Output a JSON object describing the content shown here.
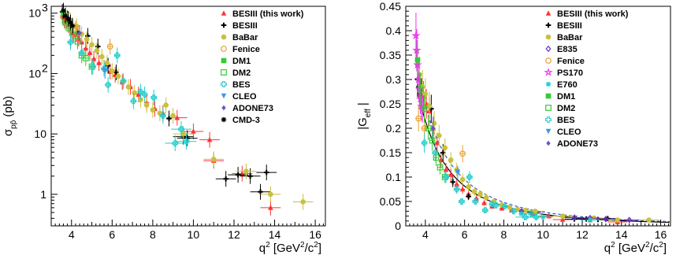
{
  "chart_data": [
    {
      "type": "scatter",
      "panel": "left",
      "ylabel_main": "σ",
      "ylabel_sub": "pp̄",
      "ylabel_unit": "(pb)",
      "xlabel_main": "q",
      "xlabel_unit": "[GeV /c ]",
      "yscale": "log",
      "xlim": [
        3.0,
        16.5
      ],
      "ylim": [
        0.3,
        1300
      ],
      "xticks": [
        "4",
        "6",
        "8",
        "10",
        "12",
        "14",
        "16"
      ],
      "xtick_values": [
        4,
        6,
        8,
        10,
        12,
        14,
        16
      ],
      "yticks": [
        "1",
        "10",
        "10",
        "10"
      ],
      "ytick_exp": [
        "",
        "",
        "2",
        "3"
      ],
      "ytick_values": [
        1,
        10,
        100,
        1000
      ],
      "legend": [
        {
          "name": "BESIII (this work)",
          "marker": "triangle-up",
          "color": "#ff3333"
        },
        {
          "name": "BESIII",
          "marker": "plus",
          "color": "#000000"
        },
        {
          "name": "BaBar",
          "marker": "circle",
          "color": "#c9c13a"
        },
        {
          "name": "Fenice",
          "marker": "open-circle",
          "color": "#e8a030"
        },
        {
          "name": "DM1",
          "marker": "square",
          "color": "#33cc33"
        },
        {
          "name": "DM2",
          "marker": "open-square",
          "color": "#33cc33"
        },
        {
          "name": "BES",
          "marker": "open-cross",
          "color": "#22cccc"
        },
        {
          "name": "CLEO",
          "marker": "triangle-down",
          "color": "#3399ee"
        },
        {
          "name": "ADONE73",
          "marker": "diamond",
          "color": "#6655cc"
        },
        {
          "name": "CMD-3",
          "marker": "star",
          "color": "#000000"
        }
      ],
      "series": [
        {
          "name": "BESIII (this work)",
          "points": [
            [
              3.55,
              900
            ],
            [
              3.65,
              760
            ],
            [
              3.75,
              760
            ],
            [
              3.85,
              640
            ],
            [
              3.95,
              600
            ],
            [
              4.05,
              470
            ],
            [
              4.2,
              440
            ],
            [
              4.35,
              380
            ],
            [
              4.5,
              330
            ],
            [
              4.7,
              260
            ],
            [
              4.9,
              220
            ],
            [
              5.1,
              175
            ],
            [
              5.35,
              150
            ],
            [
              5.6,
              125
            ],
            [
              5.9,
              108
            ],
            [
              6.15,
              95
            ],
            [
              6.5,
              72
            ],
            [
              6.9,
              60
            ],
            [
              7.3,
              45
            ],
            [
              7.7,
              33
            ],
            [
              8.1,
              26
            ],
            [
              8.5,
              22
            ],
            [
              9.2,
              18.5
            ],
            [
              10.0,
              11
            ],
            [
              10.8,
              8
            ],
            [
              11.0,
              3.6
            ],
            [
              12.4,
              2.2
            ],
            [
              13.8,
              0.6
            ]
          ]
        },
        {
          "name": "BESIII",
          "points": [
            [
              3.55,
              1050
            ],
            [
              3.8,
              820
            ],
            [
              4.3,
              490
            ],
            [
              4.8,
              420
            ],
            [
              5.3,
              280
            ],
            [
              5.8,
              135
            ],
            [
              6.2,
              105
            ],
            [
              8.8,
              18
            ],
            [
              9.5,
              9
            ],
            [
              9.7,
              8.5
            ],
            [
              11.6,
              1.8
            ],
            [
              12.2,
              2.1
            ],
            [
              12.8,
              2.0
            ],
            [
              13.3,
              1.1
            ],
            [
              13.6,
              2.3
            ]
          ]
        },
        {
          "name": "BaBar",
          "points": [
            [
              3.7,
              950
            ],
            [
              3.95,
              760
            ],
            [
              4.25,
              610
            ],
            [
              4.5,
              450
            ],
            [
              4.75,
              370
            ],
            [
              5.0,
              300
            ],
            [
              5.25,
              240
            ],
            [
              5.5,
              190
            ],
            [
              5.75,
              150
            ],
            [
              6.0,
              110
            ],
            [
              6.3,
              90
            ],
            [
              6.55,
              75
            ],
            [
              6.8,
              60
            ],
            [
              7.1,
              48
            ],
            [
              7.4,
              37
            ],
            [
              7.7,
              30
            ],
            [
              8.0,
              25
            ],
            [
              8.35,
              22
            ],
            [
              8.65,
              30
            ],
            [
              9.0,
              20
            ],
            [
              9.5,
              10
            ],
            [
              11.0,
              3.8
            ],
            [
              12.6,
              2.4
            ],
            [
              13.8,
              1.0
            ],
            [
              15.4,
              0.75
            ]
          ]
        },
        {
          "name": "Fenice",
          "points": [
            [
              3.6,
              850
            ],
            [
              3.9,
              650
            ],
            [
              4.2,
              550
            ],
            [
              5.9,
              280
            ]
          ]
        },
        {
          "name": "DM1",
          "points": [
            [
              3.6,
              1000
            ]
          ]
        },
        {
          "name": "DM2",
          "points": [
            [
              3.7,
              700
            ],
            [
              3.9,
              560
            ],
            [
              4.1,
              430
            ],
            [
              4.3,
              340
            ],
            [
              4.5,
              200
            ],
            [
              4.7,
              180
            ],
            [
              5.0,
              130
            ]
          ]
        },
        {
          "name": "BES",
          "points": [
            [
              3.95,
              330
            ],
            [
              4.5,
              220
            ],
            [
              5.05,
              130
            ],
            [
              5.6,
              120
            ],
            [
              5.8,
              65
            ],
            [
              6.25,
              200
            ],
            [
              6.55,
              75
            ],
            [
              7.05,
              35
            ],
            [
              7.4,
              50
            ],
            [
              7.6,
              45
            ],
            [
              8.05,
              40
            ],
            [
              8.5,
              20
            ],
            [
              9.1,
              7
            ],
            [
              9.4,
              12
            ],
            [
              9.65,
              7.5
            ]
          ]
        },
        {
          "name": "CLEO",
          "points": [
            [
              5.65,
              110
            ]
          ]
        },
        {
          "name": "ADONE73",
          "points": [
            [
              4.4,
              470
            ]
          ]
        },
        {
          "name": "CMD-3",
          "points": [
            [
              3.6,
              1100
            ],
            [
              3.7,
              900
            ],
            [
              3.85,
              800
            ],
            [
              3.95,
              700
            ],
            [
              4.05,
              620
            ]
          ]
        }
      ]
    },
    {
      "type": "scatter",
      "panel": "right",
      "ylabel_main": "|G",
      "ylabel_sub": "eff",
      "ylabel_close": "|",
      "xlabel_main": "q",
      "xlabel_unit": "[GeV /c ]",
      "yscale": "linear",
      "xlim": [
        3.0,
        16.5
      ],
      "ylim": [
        0,
        0.45
      ],
      "xticks": [
        "4",
        "6",
        "8",
        "10",
        "12",
        "14",
        "16"
      ],
      "xtick_values": [
        4,
        6,
        8,
        10,
        12,
        14,
        16
      ],
      "yticks": [
        "0",
        "0.05",
        "0.1",
        "0.15",
        "0.2",
        "0.25",
        "0.3",
        "0.35",
        "0.4",
        "0.45"
      ],
      "ytick_values": [
        0,
        0.05,
        0.1,
        0.15,
        0.2,
        0.25,
        0.3,
        0.35,
        0.4,
        0.45
      ],
      "legend": [
        {
          "name": "BESIII (this work)",
          "marker": "triangle-up",
          "color": "#ff3333"
        },
        {
          "name": "BESIII",
          "marker": "plus",
          "color": "#000000"
        },
        {
          "name": "BaBar",
          "marker": "circle",
          "color": "#c9c13a"
        },
        {
          "name": "E835",
          "marker": "open-diamond",
          "color": "#6633cc"
        },
        {
          "name": "Fenice",
          "marker": "open-circle",
          "color": "#e8a030"
        },
        {
          "name": "PS170",
          "marker": "open-star",
          "color": "#ee33ee"
        },
        {
          "name": "E760",
          "marker": "asterisk",
          "color": "#22cccc"
        },
        {
          "name": "DM1",
          "marker": "square",
          "color": "#33cc33"
        },
        {
          "name": "DM2",
          "marker": "open-square",
          "color": "#33cc33"
        },
        {
          "name": "BES",
          "marker": "open-cross",
          "color": "#22cccc"
        },
        {
          "name": "CLEO",
          "marker": "triangle-down",
          "color": "#3399ee"
        },
        {
          "name": "ADONE73",
          "marker": "diamond",
          "color": "#6655cc"
        }
      ],
      "series": [
        {
          "name": "BESIII (this work)",
          "points": [
            [
              3.75,
              0.27
            ],
            [
              3.9,
              0.265
            ],
            [
              4.05,
              0.25
            ],
            [
              4.2,
              0.235
            ],
            [
              4.4,
              0.2
            ],
            [
              4.6,
              0.17
            ],
            [
              4.8,
              0.135
            ],
            [
              5.05,
              0.115
            ],
            [
              5.3,
              0.105
            ],
            [
              5.6,
              0.085
            ],
            [
              5.9,
              0.075
            ],
            [
              6.2,
              0.065
            ],
            [
              6.6,
              0.056
            ],
            [
              7.0,
              0.047
            ],
            [
              7.4,
              0.04
            ],
            [
              7.9,
              0.036
            ],
            [
              8.4,
              0.032
            ],
            [
              8.9,
              0.028
            ],
            [
              9.5,
              0.025
            ],
            [
              10.3,
              0.02
            ],
            [
              11.0,
              0.013
            ],
            [
              12.4,
              0.012
            ],
            [
              13.8,
              0.008
            ]
          ]
        },
        {
          "name": "BESIII",
          "points": [
            [
              3.6,
              0.3
            ],
            [
              3.8,
              0.27
            ],
            [
              4.3,
              0.24
            ],
            [
              4.9,
              0.15
            ],
            [
              5.4,
              0.09
            ],
            [
              6.2,
              0.06
            ],
            [
              9.4,
              0.028
            ],
            [
              11.6,
              0.014
            ],
            [
              12.2,
              0.014
            ],
            [
              12.8,
              0.013
            ],
            [
              13.3,
              0.015
            ]
          ]
        },
        {
          "name": "BaBar",
          "points": [
            [
              3.6,
              0.33
            ],
            [
              3.7,
              0.31
            ],
            [
              3.85,
              0.285
            ],
            [
              4.0,
              0.27
            ],
            [
              4.2,
              0.245
            ],
            [
              4.45,
              0.21
            ],
            [
              4.7,
              0.185
            ],
            [
              5.0,
              0.16
            ],
            [
              5.3,
              0.135
            ],
            [
              5.6,
              0.115
            ],
            [
              5.9,
              0.095
            ],
            [
              6.2,
              0.08
            ],
            [
              6.5,
              0.07
            ],
            [
              6.8,
              0.065
            ],
            [
              7.1,
              0.058
            ],
            [
              7.5,
              0.05
            ],
            [
              7.9,
              0.043
            ],
            [
              8.3,
              0.038
            ],
            [
              8.7,
              0.034
            ],
            [
              9.1,
              0.032
            ],
            [
              9.6,
              0.03
            ],
            [
              11.0,
              0.02
            ],
            [
              12.6,
              0.016
            ],
            [
              13.8,
              0.012
            ],
            [
              15.4,
              0.012
            ]
          ]
        },
        {
          "name": "E835",
          "points": [
            [
              8.9,
              0.03
            ],
            [
              11.6,
              0.017
            ],
            [
              12.4,
              0.016
            ],
            [
              13.2,
              0.014
            ],
            [
              14.4,
              0.012
            ]
          ]
        },
        {
          "name": "Fenice",
          "points": [
            [
              3.65,
              0.22
            ],
            [
              3.95,
              0.2
            ],
            [
              5.9,
              0.148
            ]
          ]
        },
        {
          "name": "PS170",
          "points": [
            [
              3.52,
              0.39
            ],
            [
              3.56,
              0.36
            ],
            [
              3.6,
              0.33
            ],
            [
              3.65,
              0.3
            ],
            [
              3.7,
              0.28
            ],
            [
              3.75,
              0.26
            ],
            [
              3.8,
              0.245
            ],
            [
              3.85,
              0.24
            ]
          ]
        },
        {
          "name": "E760",
          "points": [
            [
              8.9,
              0.025
            ],
            [
              10.0,
              0.018
            ],
            [
              12.4,
              0.012
            ]
          ]
        },
        {
          "name": "DM1",
          "points": [
            [
              3.6,
              0.34
            ]
          ]
        },
        {
          "name": "DM2",
          "points": [
            [
              3.75,
              0.28
            ],
            [
              3.95,
              0.24
            ],
            [
              4.15,
              0.2
            ],
            [
              4.35,
              0.175
            ],
            [
              4.55,
              0.14
            ],
            [
              4.75,
              0.12
            ],
            [
              5.0,
              0.1
            ]
          ]
        },
        {
          "name": "BES",
          "points": [
            [
              3.95,
              0.17
            ],
            [
              4.5,
              0.15
            ],
            [
              5.05,
              0.1
            ],
            [
              5.6,
              0.075
            ],
            [
              5.85,
              0.05
            ],
            [
              6.25,
              0.1
            ],
            [
              6.55,
              0.05
            ],
            [
              7.05,
              0.032
            ],
            [
              7.4,
              0.045
            ],
            [
              7.6,
              0.042
            ],
            [
              8.05,
              0.04
            ],
            [
              8.5,
              0.03
            ],
            [
              9.1,
              0.018
            ],
            [
              9.4,
              0.025
            ],
            [
              9.65,
              0.018
            ]
          ]
        },
        {
          "name": "CLEO",
          "points": [
            [
              5.65,
              0.11
            ]
          ]
        },
        {
          "name": "ADONE73",
          "points": [
            [
              4.4,
              0.2
            ]
          ]
        }
      ]
    }
  ]
}
